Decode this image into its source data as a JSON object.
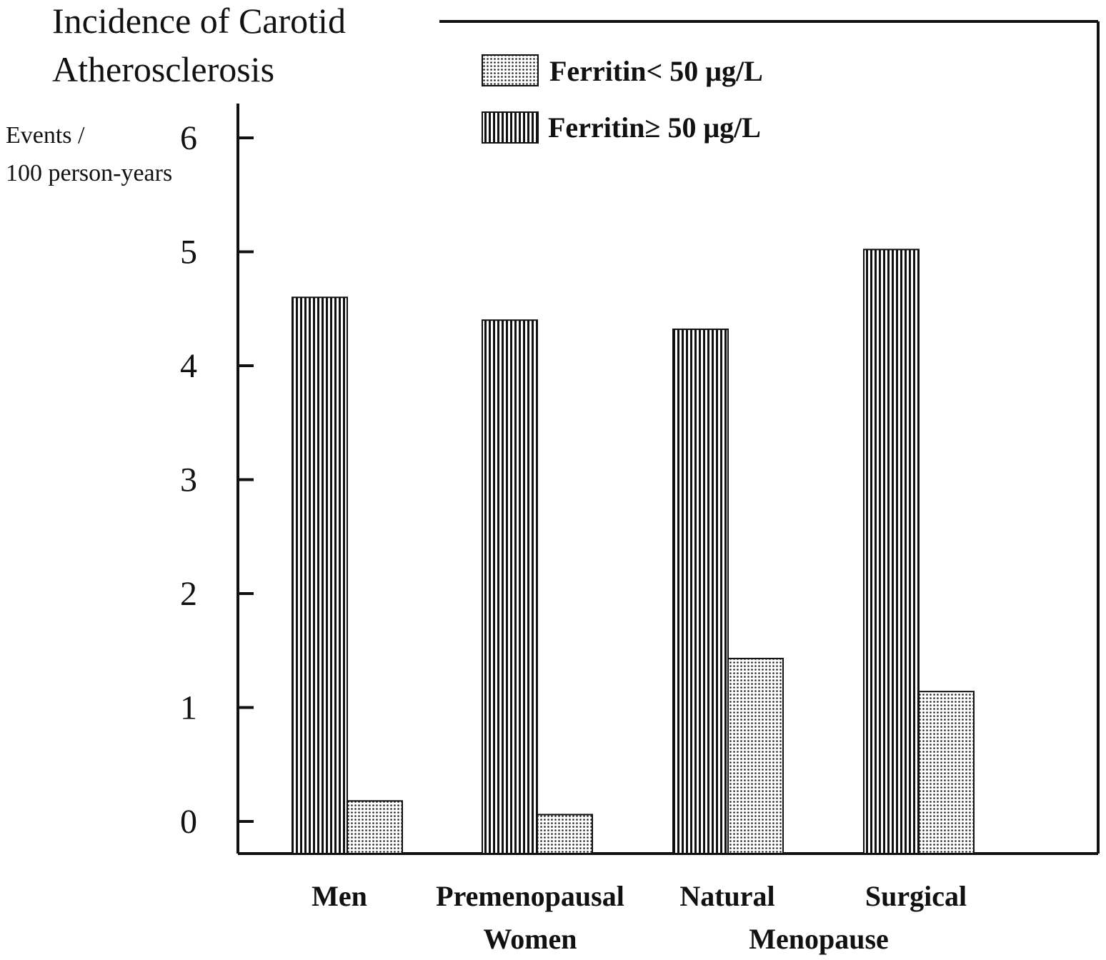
{
  "chart_data": {
    "type": "bar",
    "title_lines": [
      "Incidence of Carotid",
      "Atherosclerosis"
    ],
    "ylabel_lines": [
      "Events /",
      "100 person-years"
    ],
    "xlabel": "",
    "ylim": [
      -0.3,
      6.3
    ],
    "y_ticks": [
      "0",
      "1",
      "2",
      "3",
      "4",
      "5",
      "6"
    ],
    "categories": [
      [
        "Men"
      ],
      [
        "Premenopausal",
        "Women"
      ],
      [
        "Natural"
      ],
      [
        "Surgical"
      ]
    ],
    "group_label": "Menopause",
    "series": [
      {
        "name": "Ferritin≥ 50 μg/L",
        "pattern": "vertical-stripes",
        "values": [
          4.6,
          4.4,
          4.32,
          5.02
        ]
      },
      {
        "name": "Ferritin< 50 μg/L",
        "pattern": "dots",
        "values": [
          0.18,
          0.06,
          1.43,
          1.14
        ]
      }
    ],
    "legend": [
      "Ferritin< 50 μg/L",
      "Ferritin≥ 50 μg/L"
    ],
    "legend_position": "top-center",
    "grid": false,
    "colors": {
      "ink": "#111111",
      "background": "#ffffff"
    }
  }
}
